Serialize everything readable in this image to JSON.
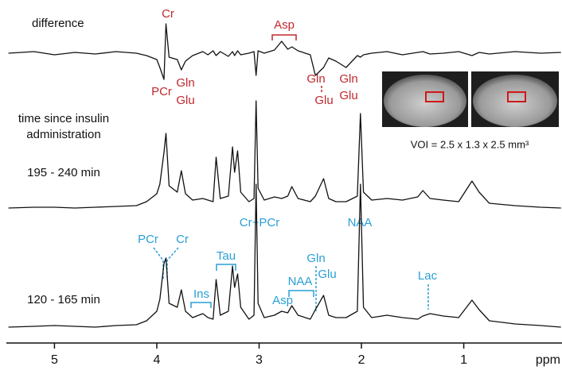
{
  "chart_data": [
    {
      "type": "line",
      "label": "difference",
      "color": "#111111",
      "x": [
        5.45,
        5.2,
        5.0,
        4.8,
        4.6,
        4.4,
        4.2,
        4.1,
        4.0,
        3.97,
        3.93,
        3.91,
        3.88,
        3.8,
        3.76,
        3.72,
        3.65,
        3.55,
        3.5,
        3.45,
        3.42,
        3.38,
        3.3,
        3.26,
        3.24,
        3.21,
        3.18,
        3.1,
        3.05,
        3.03,
        3.01,
        2.95,
        2.85,
        2.78,
        2.72,
        2.68,
        2.62,
        2.5,
        2.45,
        2.37,
        2.32,
        2.25,
        2.15,
        2.04,
        2.01,
        1.98,
        1.9,
        1.75,
        1.6,
        1.45,
        1.4,
        1.33,
        1.2,
        1.05,
        0.92,
        0.85,
        0.75,
        0.5,
        0.25,
        0.05
      ],
      "values": [
        0,
        2,
        -2,
        1,
        -1,
        2,
        0,
        -3,
        -8,
        -18,
        -33,
        37,
        -5,
        -8,
        -21,
        -10,
        -3,
        2,
        -2,
        3,
        -3,
        2,
        -4,
        2,
        -3,
        3,
        -2,
        0,
        2,
        -28,
        3,
        0,
        4,
        15,
        5,
        8,
        3,
        -2,
        -28,
        -18,
        -6,
        -10,
        -18,
        -3,
        -5,
        -2,
        0,
        2,
        -2,
        1,
        2,
        -1,
        0,
        2,
        -3,
        1,
        -1,
        2,
        0,
        1
      ],
      "xlim": [
        5.47,
        0.04
      ],
      "ylim": [
        -43,
        47
      ],
      "annotations": [
        "Cr",
        "PCr",
        "Gln",
        "Glu",
        "Asp",
        "Gln",
        "Glu",
        "Gln",
        "Glu"
      ]
    },
    {
      "type": "line",
      "label": "195 - 240 min",
      "color": "#111111",
      "x": [
        5.45,
        5.2,
        5.0,
        4.8,
        4.6,
        4.4,
        4.2,
        4.1,
        4.0,
        3.97,
        3.93,
        3.91,
        3.88,
        3.8,
        3.76,
        3.72,
        3.65,
        3.55,
        3.5,
        3.45,
        3.42,
        3.38,
        3.3,
        3.26,
        3.24,
        3.21,
        3.18,
        3.1,
        3.05,
        3.03,
        3.01,
        2.95,
        2.85,
        2.78,
        2.72,
        2.68,
        2.62,
        2.5,
        2.45,
        2.37,
        2.32,
        2.25,
        2.15,
        2.04,
        2.01,
        1.98,
        1.9,
        1.75,
        1.6,
        1.45,
        1.4,
        1.33,
        1.2,
        1.05,
        0.92,
        0.85,
        0.75,
        0.5,
        0.25,
        0.05
      ],
      "values": [
        0,
        1,
        1,
        0,
        1,
        2,
        3,
        8,
        18,
        30,
        70,
        94,
        28,
        20,
        47,
        18,
        10,
        12,
        10,
        8,
        64,
        12,
        15,
        77,
        45,
        72,
        20,
        8,
        12,
        135,
        25,
        10,
        14,
        12,
        15,
        27,
        12,
        8,
        15,
        37,
        12,
        8,
        8,
        15,
        119,
        20,
        10,
        12,
        10,
        14,
        22,
        12,
        10,
        8,
        34,
        20,
        6,
        3,
        1,
        0
      ],
      "xlim": [
        5.47,
        0.04
      ],
      "ylim": [
        -18,
        152
      ]
    },
    {
      "type": "line",
      "label": "120 - 165 min",
      "color": "#111111",
      "x": [
        5.45,
        5.2,
        5.0,
        4.8,
        4.6,
        4.4,
        4.2,
        4.1,
        4.0,
        3.97,
        3.93,
        3.91,
        3.88,
        3.8,
        3.76,
        3.72,
        3.65,
        3.55,
        3.5,
        3.45,
        3.42,
        3.38,
        3.3,
        3.26,
        3.24,
        3.21,
        3.18,
        3.1,
        3.05,
        3.03,
        3.01,
        2.95,
        2.85,
        2.78,
        2.72,
        2.68,
        2.62,
        2.5,
        2.45,
        2.37,
        2.32,
        2.25,
        2.15,
        2.04,
        2.01,
        1.98,
        1.9,
        1.75,
        1.6,
        1.45,
        1.4,
        1.33,
        1.2,
        1.05,
        0.92,
        0.85,
        0.75,
        0.5,
        0.25,
        0.05
      ],
      "values": [
        0,
        1,
        2,
        1,
        0,
        2,
        3,
        8,
        20,
        35,
        80,
        87,
        30,
        25,
        47,
        20,
        12,
        17,
        12,
        10,
        60,
        15,
        20,
        77,
        50,
        67,
        25,
        10,
        15,
        180,
        30,
        12,
        15,
        20,
        18,
        27,
        15,
        10,
        22,
        40,
        15,
        12,
        12,
        20,
        180,
        25,
        12,
        15,
        12,
        10,
        14,
        17,
        14,
        12,
        34,
        22,
        8,
        4,
        2,
        0
      ],
      "xlim": [
        5.47,
        0.04
      ],
      "ylim": [
        -13,
        187
      ],
      "xticks": [
        5,
        4,
        3,
        2,
        1
      ],
      "xlabel": "ppm",
      "annotations": [
        "PCr",
        "Cr",
        "Tau",
        "Cr+PCr",
        "NAA",
        "Gln",
        "Glu",
        "NAA",
        "Asp",
        "Ins",
        "Lac"
      ]
    }
  ],
  "heading": [
    "time since insulin",
    "administration"
  ],
  "inset": {
    "caption": "VOI = 2.5 x 1.3 x 2.5 mm³"
  }
}
